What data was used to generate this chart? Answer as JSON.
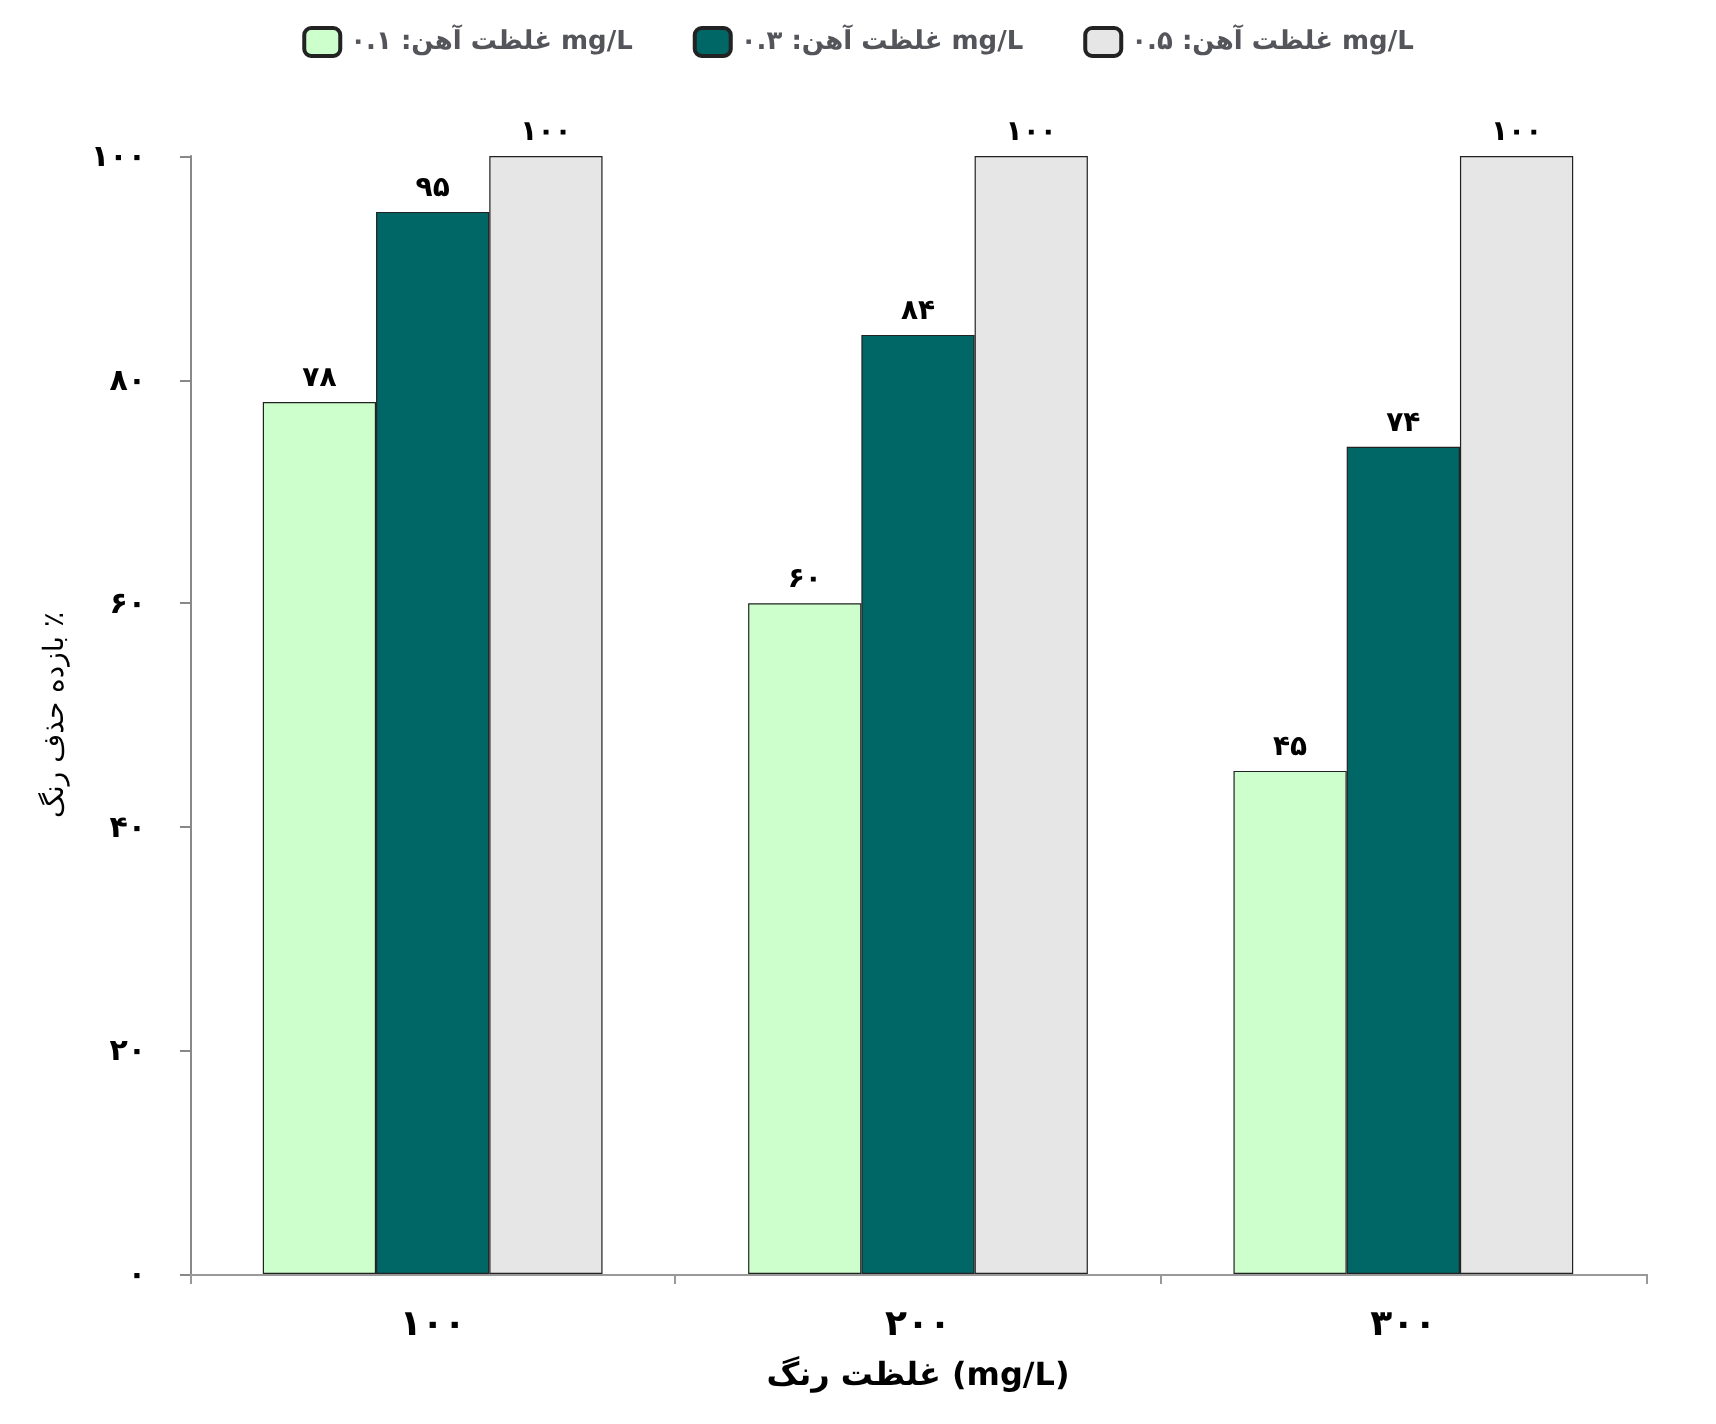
{
  "chart_data": {
    "type": "bar",
    "xlabel": "غلظت رنگ (mg/L)",
    "ylabel": "بازده حذف رنگ ٪",
    "categories": [
      "۱۰۰",
      "۲۰۰",
      "۳۰۰"
    ],
    "series": [
      {
        "name": "غلظت آهن: ۰.۱ mg/L",
        "color": "#ccffcc",
        "values": [
          78,
          60,
          45
        ],
        "value_labels": [
          "۷۸",
          "۶۰",
          "۴۵"
        ]
      },
      {
        "name": "غلظت آهن: ۰.۳ mg/L",
        "color": "#006666",
        "values": [
          95,
          84,
          74
        ],
        "value_labels": [
          "۹۵",
          "۸۴",
          "۷۴"
        ]
      },
      {
        "name": "غلظت آهن: ۰.۵ mg/L",
        "color": "#e6e6e6",
        "values": [
          100,
          100,
          100
        ],
        "value_labels": [
          "۱۰۰",
          "۱۰۰",
          "۱۰۰"
        ]
      }
    ],
    "ylim": [
      0,
      100
    ],
    "yticks": [
      {
        "value": 0,
        "label": "۰"
      },
      {
        "value": 20,
        "label": "۲۰"
      },
      {
        "value": 40,
        "label": "۴۰"
      },
      {
        "value": 60,
        "label": "۶۰"
      },
      {
        "value": 80,
        "label": "۸۰"
      },
      {
        "value": 100,
        "label": "۱۰۰"
      }
    ],
    "grid": false,
    "legend": "top"
  }
}
